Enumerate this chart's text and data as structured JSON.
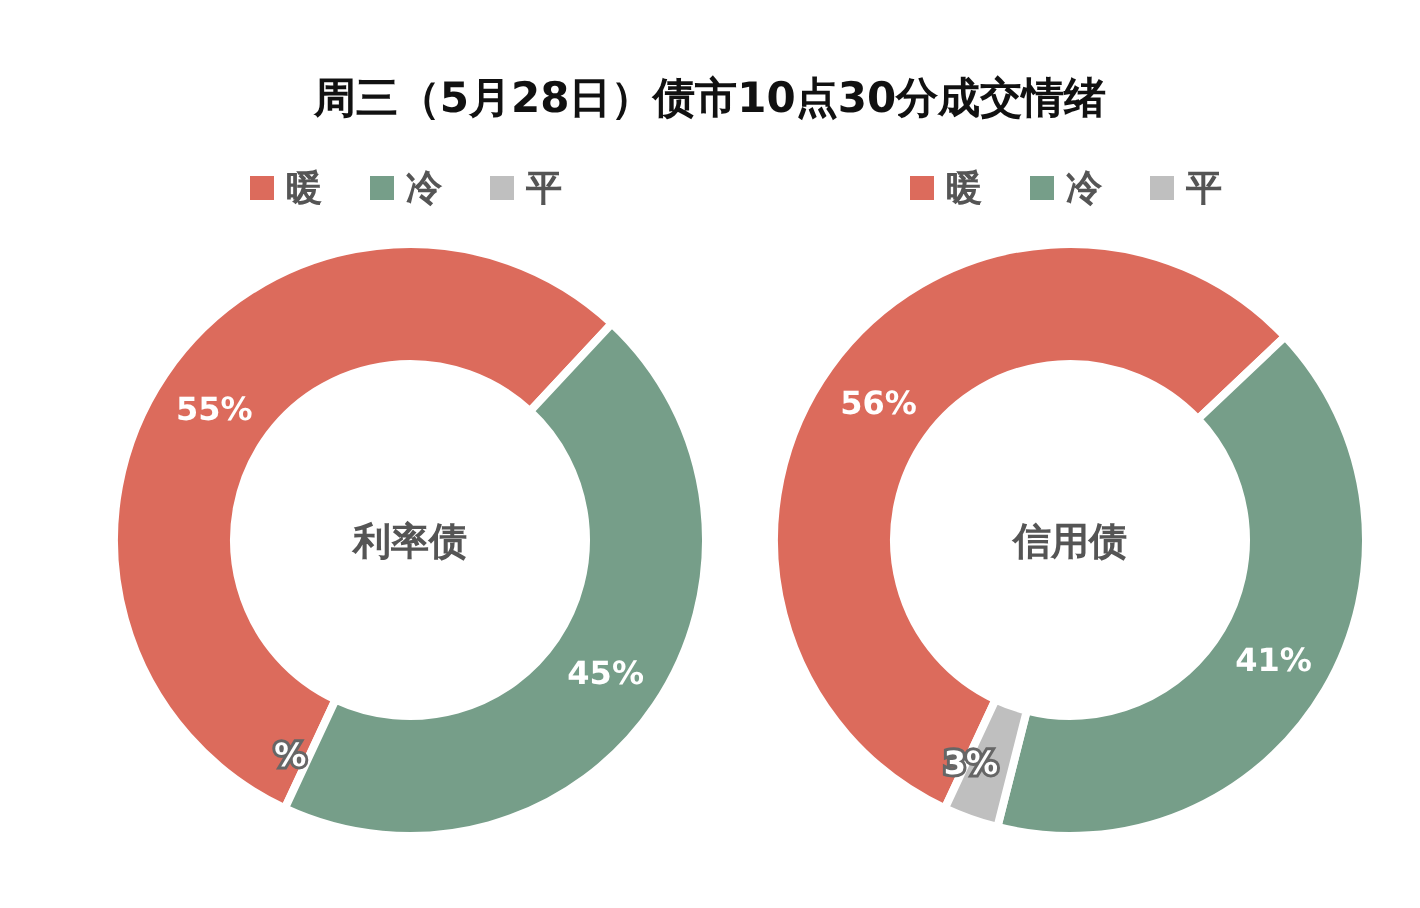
{
  "chart_data": [
    {
      "type": "donut",
      "title": "周三（5月28日）债市10点30分成交情绪",
      "categories": [
        "暖",
        "冷",
        "平"
      ],
      "values": [
        55,
        45,
        0
      ],
      "value_labels": [
        "55%",
        "45%",
        "%"
      ],
      "colors": [
        "#dc6b5c",
        "#769e89",
        "#bfbfbf"
      ],
      "legend": "top",
      "annotations": [
        "利率债"
      ]
    },
    {
      "type": "donut",
      "categories": [
        "暖",
        "冷",
        "平"
      ],
      "values": [
        56,
        41,
        3
      ],
      "value_labels": [
        "56%",
        "41%",
        "3%"
      ],
      "colors": [
        "#dc6b5c",
        "#769e89",
        "#bfbfbf"
      ],
      "legend": "top",
      "annotations": [
        "信用债"
      ]
    }
  ]
}
